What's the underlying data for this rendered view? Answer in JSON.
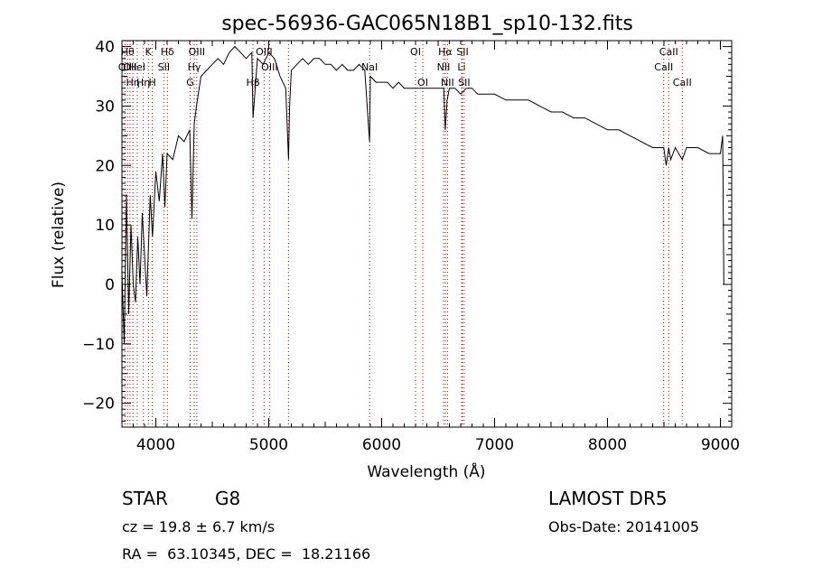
{
  "chart_data": {
    "type": "line",
    "title": "spec-56936-GAC065N18B1_sp10-132.fits",
    "xlabel": "Wavelength (Å)",
    "ylabel": "Flux (relative)",
    "xlim": [
      3700,
      9100
    ],
    "ylim": [
      -24,
      41
    ],
    "xticks": [
      4000,
      5000,
      6000,
      7000,
      8000,
      9000
    ],
    "yticks": [
      -20,
      -10,
      0,
      10,
      20,
      30,
      40
    ],
    "grid": false,
    "series": [
      {
        "x": [
          3700,
          3720,
          3740,
          3760,
          3780,
          3800,
          3820,
          3840,
          3860,
          3880,
          3900,
          3920,
          3950,
          3970,
          4000,
          4030,
          4060,
          4080,
          4100,
          4150,
          4200,
          4250,
          4300,
          4320,
          4340,
          4360,
          4400,
          4450,
          4500,
          4550,
          4600,
          4650,
          4700,
          4750,
          4800,
          4850,
          4861,
          4900,
          4950,
          5000,
          5050,
          5100,
          5150,
          5175,
          5185,
          5200,
          5250,
          5300,
          5350,
          5400,
          5450,
          5500,
          5550,
          5600,
          5650,
          5700,
          5750,
          5800,
          5850,
          5893,
          5900,
          5950,
          6000,
          6050,
          6100,
          6150,
          6200,
          6250,
          6300,
          6350,
          6400,
          6450,
          6500,
          6550,
          6563,
          6580,
          6600,
          6650,
          6700,
          6750,
          6800,
          6850,
          6900,
          6950,
          7000,
          7100,
          7200,
          7300,
          7400,
          7500,
          7600,
          7700,
          7800,
          7900,
          8000,
          8100,
          8200,
          8300,
          8400,
          8498,
          8520,
          8542,
          8560,
          8600,
          8662,
          8700,
          8800,
          8900,
          8950,
          9000,
          9020,
          9030
        ],
        "y": [
          2,
          -10,
          15,
          -5,
          10,
          0,
          -3,
          8,
          0,
          12,
          5,
          -2,
          15,
          8,
          19,
          14,
          22,
          13,
          22,
          21,
          25,
          24,
          26,
          11,
          27,
          30,
          35,
          36,
          37,
          38,
          37,
          39,
          40,
          39,
          38,
          39,
          28,
          38,
          37,
          39,
          38,
          35,
          33,
          21,
          30,
          36,
          37,
          38,
          37,
          38,
          38,
          37,
          37,
          36,
          37,
          36,
          36,
          37,
          36,
          24,
          35,
          34,
          34,
          34,
          33,
          34,
          33,
          33,
          33,
          33,
          33,
          33,
          33,
          33,
          26,
          31,
          33,
          33,
          32,
          33,
          33,
          32,
          32,
          32,
          32,
          31,
          31,
          31,
          30,
          29,
          29,
          28,
          28,
          27,
          26,
          26,
          25,
          24,
          23,
          23,
          20,
          23,
          21,
          23,
          21,
          23,
          23,
          22,
          22,
          22,
          25,
          0
        ]
      }
    ],
    "lines": [
      {
        "x": 3727,
        "label": "OII",
        "row": 2
      },
      {
        "x": 3750,
        "label": "Hθ",
        "row": 1
      },
      {
        "x": 3771,
        "label": "OII",
        "row": 2
      },
      {
        "x": 3797,
        "label": "Hη",
        "row": 3
      },
      {
        "x": 3835,
        "label": "HeI",
        "row": 2
      },
      {
        "x": 3889,
        "label": "Hη",
        "row": 3
      },
      {
        "x": 3934,
        "label": "K",
        "row": 1
      },
      {
        "x": 3969,
        "label": "H",
        "row": 3
      },
      {
        "x": 4071,
        "label": "SII",
        "row": 2
      },
      {
        "x": 4102,
        "label": "Hδ",
        "row": 1
      },
      {
        "x": 4304,
        "label": "G",
        "row": 3
      },
      {
        "x": 4340,
        "label": "Hγ",
        "row": 2
      },
      {
        "x": 4363,
        "label": "OIII",
        "row": 1
      },
      {
        "x": 4861,
        "label": "Hβ",
        "row": 3
      },
      {
        "x": 4959,
        "label": "OIII",
        "row": 1
      },
      {
        "x": 5007,
        "label": "OIII",
        "row": 2
      },
      {
        "x": 5175,
        "label": "",
        "row": 0
      },
      {
        "x": 5893,
        "label": "NaI",
        "row": 2
      },
      {
        "x": 6300,
        "label": "OI",
        "row": 1
      },
      {
        "x": 6364,
        "label": "OI",
        "row": 3
      },
      {
        "x": 6548,
        "label": "NII",
        "row": 2
      },
      {
        "x": 6563,
        "label": "Hα",
        "row": 1
      },
      {
        "x": 6583,
        "label": "NII",
        "row": 3
      },
      {
        "x": 6708,
        "label": "Li",
        "row": 2
      },
      {
        "x": 6716,
        "label": "SII",
        "row": 1
      },
      {
        "x": 6731,
        "label": "SII",
        "row": 3
      },
      {
        "x": 8498,
        "label": "CaII",
        "row": 2
      },
      {
        "x": 8542,
        "label": "CaII",
        "row": 1
      },
      {
        "x": 8662,
        "label": "CaII",
        "row": 3
      }
    ]
  },
  "info": {
    "object_class": "STAR",
    "subclass": "G8",
    "survey": "LAMOST DR5",
    "redshift": "cz = 19.8 ± 6.7 km/s",
    "obs_date": "Obs-Date: 20141005",
    "coords": "RA =  63.10345, DEC =  18.21166"
  },
  "colors": {
    "spectrum": "#000000",
    "line_marker": "#c00000",
    "axes": "#000000",
    "background": "#ffffff"
  }
}
